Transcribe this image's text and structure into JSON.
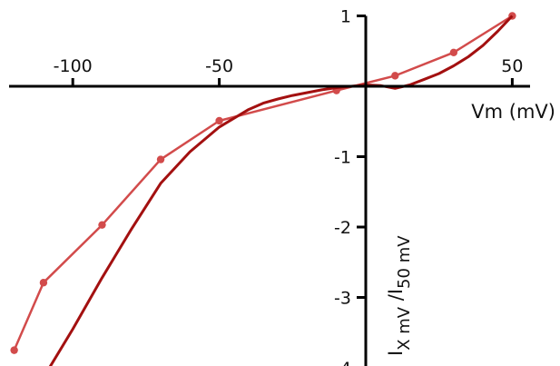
{
  "chart_data": {
    "type": "line",
    "xlabel": "Vm (mV)",
    "ylabel_parts": [
      "I",
      "X mV",
      " /I",
      "50 mV"
    ],
    "xlim": [
      -123,
      55
    ],
    "ylim": [
      -4,
      1
    ],
    "x_ticks": [
      -100,
      -50,
      50
    ],
    "x_tick_labels": [
      "-100",
      "-50",
      "50"
    ],
    "y_ticks": [
      1,
      -1,
      -2,
      -3,
      -4
    ],
    "y_tick_labels": [
      "1",
      "-1",
      "-2",
      "-3",
      "-4"
    ],
    "grid": false,
    "series": [
      {
        "kind": "points",
        "color": "#d24b4b",
        "x": [
          -120,
          -110,
          -90,
          -70,
          -50,
          -10,
          10,
          30,
          50
        ],
        "y": [
          -3.75,
          -2.79,
          -1.97,
          -1.04,
          -0.49,
          -0.06,
          0.15,
          0.48,
          1.0
        ]
      },
      {
        "kind": "trace",
        "color": "#a31010",
        "x": [
          -108,
          -100,
          -90,
          -80,
          -70,
          -60,
          -50,
          -40,
          -35,
          -30,
          -25,
          -20,
          -15,
          -10,
          -5,
          0,
          5,
          10,
          15,
          20,
          25,
          30,
          35,
          40,
          45,
          50
        ],
        "y": [
          -4.0,
          -3.45,
          -2.72,
          -2.03,
          -1.38,
          -0.93,
          -0.58,
          -0.33,
          -0.24,
          -0.18,
          -0.13,
          -0.09,
          -0.05,
          -0.02,
          0.0,
          0.02,
          0.01,
          -0.03,
          0.02,
          0.1,
          0.18,
          0.29,
          0.42,
          0.58,
          0.78,
          1.0
        ]
      }
    ]
  }
}
